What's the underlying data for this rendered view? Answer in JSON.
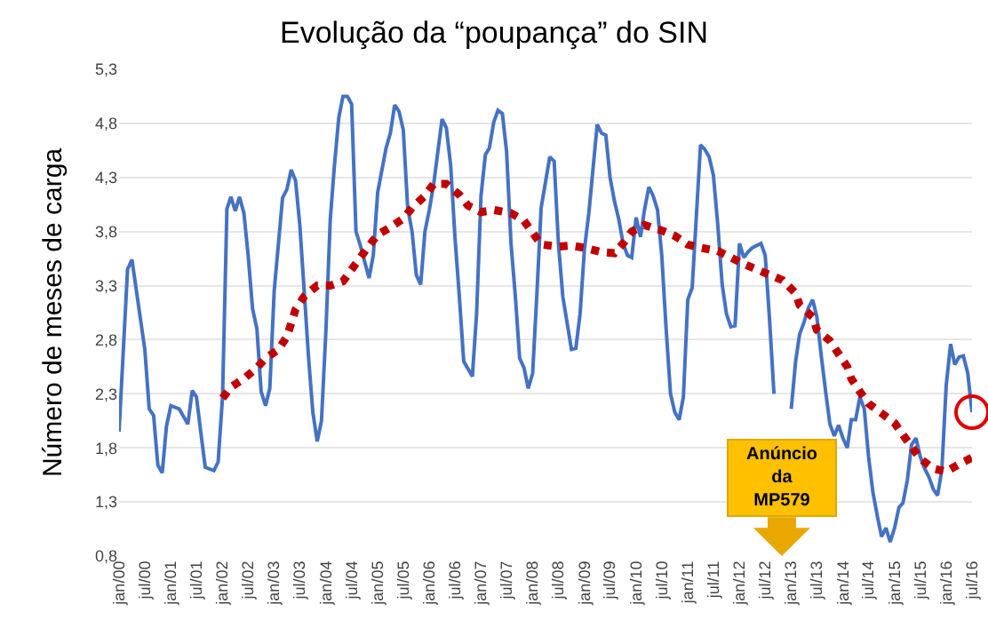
{
  "chart_data": {
    "type": "line",
    "title": "Evolução da “poupança” do SIN",
    "ylabel": "Número de meses de carga",
    "xlim": [
      "2000-01",
      "2016-07"
    ],
    "xticks": [
      {
        "value": "2000-01",
        "label": "jan/00"
      },
      {
        "value": "2000-07",
        "label": "jul/00"
      },
      {
        "value": "2001-01",
        "label": "jan/01"
      },
      {
        "value": "2001-07",
        "label": "jul/01"
      },
      {
        "value": "2002-01",
        "label": "jan/02"
      },
      {
        "value": "2002-07",
        "label": "jul/02"
      },
      {
        "value": "2003-01",
        "label": "jan/03"
      },
      {
        "value": "2003-07",
        "label": "jul/03"
      },
      {
        "value": "2004-01",
        "label": "jan/04"
      },
      {
        "value": "2004-07",
        "label": "jul/04"
      },
      {
        "value": "2005-01",
        "label": "jan/05"
      },
      {
        "value": "2005-07",
        "label": "jul/05"
      },
      {
        "value": "2006-01",
        "label": "jan/06"
      },
      {
        "value": "2006-07",
        "label": "jul/06"
      },
      {
        "value": "2007-01",
        "label": "jan/07"
      },
      {
        "value": "2007-07",
        "label": "jul/07"
      },
      {
        "value": "2008-01",
        "label": "jan/08"
      },
      {
        "value": "2008-07",
        "label": "jul/08"
      },
      {
        "value": "2009-01",
        "label": "jan/09"
      },
      {
        "value": "2009-07",
        "label": "jul/09"
      },
      {
        "value": "2010-01",
        "label": "jan/10"
      },
      {
        "value": "2010-07",
        "label": "jul/10"
      },
      {
        "value": "2011-01",
        "label": "jan/11"
      },
      {
        "value": "2011-07",
        "label": "jul/11"
      },
      {
        "value": "2012-01",
        "label": "jan/12"
      },
      {
        "value": "2012-07",
        "label": "jul/12"
      },
      {
        "value": "2013-01",
        "label": "jan/13"
      },
      {
        "value": "2013-07",
        "label": "jul/13"
      },
      {
        "value": "2014-01",
        "label": "jan/14"
      },
      {
        "value": "2014-07",
        "label": "jul/14"
      },
      {
        "value": "2015-01",
        "label": "jan/15"
      },
      {
        "value": "2015-07",
        "label": "jul/15"
      },
      {
        "value": "2016-01",
        "label": "jan/16"
      },
      {
        "value": "2016-07",
        "label": "jul/16"
      }
    ],
    "ylim": [
      0.8,
      5.3
    ],
    "yticks": [
      {
        "value": 0.8,
        "label": "0,8"
      },
      {
        "value": 1.3,
        "label": "1,3"
      },
      {
        "value": 1.8,
        "label": "1,8"
      },
      {
        "value": 2.3,
        "label": "2,3"
      },
      {
        "value": 2.8,
        "label": "2,8"
      },
      {
        "value": 3.3,
        "label": "3,3"
      },
      {
        "value": 3.8,
        "label": "3,8"
      },
      {
        "value": 4.3,
        "label": "4,3"
      },
      {
        "value": 4.8,
        "label": "4,8"
      },
      {
        "value": 5.3,
        "label": "5,3"
      }
    ],
    "grid": "y",
    "series": [
      {
        "color": "#4472c4",
        "line_style": "solid",
        "x": [
          "2000-01",
          "2000-03",
          "2000-04",
          "2000-07",
          "2000-08",
          "2000-09",
          "2000-10",
          "2000-11",
          "2000-12",
          "2001-01",
          "2001-03",
          "2001-04",
          "2001-05",
          "2001-06",
          "2001-07",
          "2001-08",
          "2001-09",
          "2001-11",
          "2001-12",
          "2002-01",
          "2002-02",
          "2002-03",
          "2002-04",
          "2002-05",
          "2002-06",
          "2002-07",
          "2002-08",
          "2002-09",
          "2002-10",
          "2002-11",
          "2002-12",
          "2003-01",
          "2003-03",
          "2003-04",
          "2003-05",
          "2003-06",
          "2003-07",
          "2003-08",
          "2003-09",
          "2003-10",
          "2003-11",
          "2003-12",
          "2004-01",
          "2004-02",
          "2004-03",
          "2004-04",
          "2004-05",
          "2004-06",
          "2004-07",
          "2004-08",
          "2004-09",
          "2004-11",
          "2004-12",
          "2005-01",
          "2005-03",
          "2005-04",
          "2005-05",
          "2005-06",
          "2005-07",
          "2005-08",
          "2005-09",
          "2005-10",
          "2005-11",
          "2005-12",
          "2006-01",
          "2006-02",
          "2006-04",
          "2006-05",
          "2006-06",
          "2006-07",
          "2006-08",
          "2006-09",
          "2006-11",
          "2006-12",
          "2007-01",
          "2007-02",
          "2007-03",
          "2007-04",
          "2007-05",
          "2007-06",
          "2007-07",
          "2007-08",
          "2007-09",
          "2007-10",
          "2007-11",
          "2007-12",
          "2008-01",
          "2008-02",
          "2008-03",
          "2008-05",
          "2008-06",
          "2008-07",
          "2008-08",
          "2008-10",
          "2008-11",
          "2008-12",
          "2009-01",
          "2009-02",
          "2009-04",
          "2009-05",
          "2009-06",
          "2009-07",
          "2009-08",
          "2009-09",
          "2009-10",
          "2009-11",
          "2009-12",
          "2010-01",
          "2010-02",
          "2010-03",
          "2010-04",
          "2010-05",
          "2010-06",
          "2010-07",
          "2010-08",
          "2010-09",
          "2010-10",
          "2010-11",
          "2010-12",
          "2011-01",
          "2011-02",
          "2011-04",
          "2011-05",
          "2011-06",
          "2011-07",
          "2011-08",
          "2011-09",
          "2011-10",
          "2011-11",
          "2011-12",
          "2012-01",
          "2012-02",
          "2012-03",
          "2012-04",
          "2012-06",
          "2012-07",
          "2012-08",
          "2012-09",
          "2012-10",
          "2012-11",
          "2012-12",
          "2013-01",
          "2013-02",
          "2013-03",
          "2013-04",
          "2013-05",
          "2013-06",
          "2013-07",
          "2013-08",
          "2013-09",
          "2013-10",
          "2013-11",
          "2013-12",
          "2014-01",
          "2014-02",
          "2014-03",
          "2014-04",
          "2014-05",
          "2014-06",
          "2014-07",
          "2014-08",
          "2014-09",
          "2014-10",
          "2014-11",
          "2014-12",
          "2015-01",
          "2015-02",
          "2015-03",
          "2015-04",
          "2015-05",
          "2015-06",
          "2015-07",
          "2015-08",
          "2015-09",
          "2015-10",
          "2015-11",
          "2015-12",
          "2016-01",
          "2016-02",
          "2016-03",
          "2016-04",
          "2016-05",
          "2016-06",
          "2016-07"
        ],
        "values": [
          1.95,
          3.45,
          3.54,
          2.71,
          2.16,
          2.1,
          1.64,
          1.57,
          2.0,
          2.19,
          2.16,
          2.09,
          2.02,
          2.33,
          2.27,
          1.94,
          1.62,
          1.59,
          1.67,
          2.27,
          4.01,
          4.12,
          3.99,
          4.12,
          3.97,
          3.58,
          3.09,
          2.9,
          2.32,
          2.19,
          2.35,
          3.25,
          4.11,
          4.19,
          4.37,
          4.27,
          3.86,
          3.25,
          2.63,
          2.13,
          1.86,
          2.05,
          2.87,
          3.91,
          4.4,
          4.85,
          5.05,
          5.05,
          4.98,
          3.8,
          3.67,
          3.37,
          3.58,
          4.16,
          4.57,
          4.71,
          4.97,
          4.91,
          4.74,
          4.02,
          3.8,
          3.4,
          3.31,
          3.8,
          4.0,
          4.24,
          4.84,
          4.76,
          4.41,
          3.75,
          3.2,
          2.6,
          2.46,
          3.04,
          4.13,
          4.51,
          4.57,
          4.81,
          4.92,
          4.89,
          4.54,
          3.69,
          3.2,
          2.63,
          2.54,
          2.35,
          2.49,
          3.25,
          4.02,
          4.49,
          4.45,
          3.69,
          3.2,
          2.71,
          2.72,
          3.04,
          3.64,
          3.97,
          4.79,
          4.71,
          4.69,
          4.3,
          4.08,
          3.91,
          3.69,
          3.58,
          3.56,
          3.93,
          3.75,
          4.0,
          4.21,
          4.13,
          4.0,
          3.58,
          2.9,
          2.3,
          2.13,
          2.06,
          2.27,
          3.17,
          3.28,
          4.6,
          4.56,
          4.49,
          4.32,
          3.86,
          3.31,
          3.04,
          2.92,
          2.93,
          3.69,
          3.56,
          3.61,
          3.65,
          3.69,
          3.58,
          2.98,
          2.3,
          null,
          null,
          null,
          2.16,
          2.6,
          2.85,
          2.96,
          3.09,
          3.17,
          3.01,
          2.65,
          2.32,
          2.02,
          1.91,
          2.01,
          1.89,
          1.8,
          2.06,
          2.06,
          2.27,
          2.16,
          1.72,
          1.39,
          1.17,
          0.98,
          1.06,
          0.93,
          1.06,
          1.25,
          1.29,
          1.5,
          1.83,
          1.89,
          1.72,
          1.61,
          1.53,
          1.42,
          1.36,
          1.6,
          2.38,
          2.76,
          2.57,
          2.64,
          2.65,
          2.49,
          2.13
        ]
      },
      {
        "color": "#c00000",
        "line_style": "dotted",
        "x": [
          "2002-01",
          "2002-03",
          "2002-06",
          "2002-09",
          "2002-11",
          "2003-02",
          "2003-04",
          "2003-05",
          "2003-06",
          "2003-08",
          "2003-11",
          "2004-02",
          "2004-05",
          "2004-07",
          "2004-09",
          "2004-11",
          "2005-01",
          "2005-04",
          "2005-07",
          "2005-09",
          "2005-12",
          "2006-02",
          "2006-05",
          "2006-08",
          "2006-10",
          "2007-01",
          "2007-04",
          "2007-08",
          "2007-11",
          "2008-01",
          "2008-03",
          "2008-07",
          "2008-10",
          "2009-01",
          "2009-05",
          "2009-08",
          "2009-10",
          "2009-12",
          "2010-03",
          "2010-07",
          "2010-10",
          "2011-01",
          "2011-04",
          "2011-08",
          "2011-11",
          "2012-02",
          "2012-05",
          "2012-08",
          "2012-11",
          "2013-02",
          "2013-03",
          "2013-06",
          "2013-07",
          "2013-10",
          "2014-02",
          "2014-03",
          "2014-05",
          "2014-07",
          "2014-10",
          "2015-01",
          "2015-03",
          "2015-05",
          "2015-07",
          "2015-10",
          "2016-01",
          "2016-04",
          "2016-07"
        ],
        "values": [
          2.26,
          2.36,
          2.44,
          2.54,
          2.63,
          2.71,
          2.83,
          2.95,
          3.08,
          3.2,
          3.3,
          3.3,
          3.34,
          3.45,
          3.56,
          3.67,
          3.77,
          3.84,
          3.92,
          4.02,
          4.13,
          4.24,
          4.24,
          4.14,
          4.04,
          3.98,
          4.0,
          3.97,
          3.9,
          3.79,
          3.68,
          3.66,
          3.67,
          3.65,
          3.61,
          3.6,
          3.69,
          3.8,
          3.86,
          3.81,
          3.76,
          3.68,
          3.65,
          3.62,
          3.56,
          3.5,
          3.45,
          3.4,
          3.35,
          3.23,
          3.12,
          3.01,
          2.89,
          2.79,
          2.55,
          2.44,
          2.32,
          2.21,
          2.12,
          2.03,
          1.92,
          1.81,
          1.7,
          1.61,
          1.58,
          1.65,
          1.71
        ]
      }
    ],
    "annotations": [
      "Anúncio\nda\nMP579"
    ]
  }
}
